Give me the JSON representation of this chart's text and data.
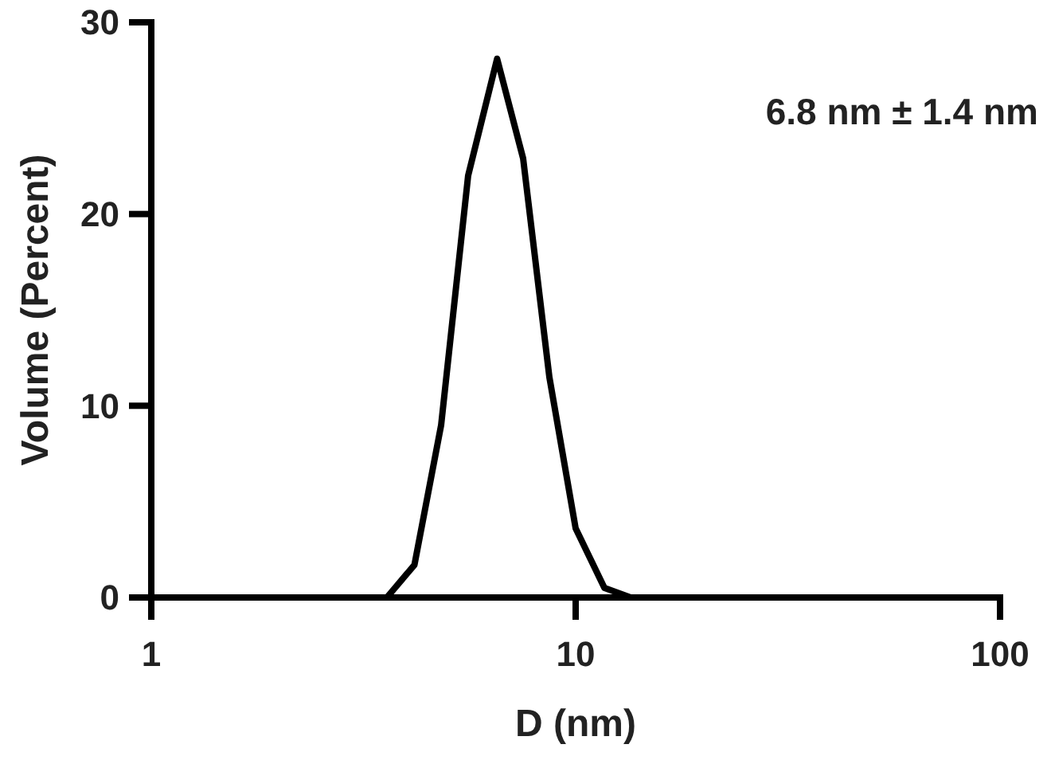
{
  "chart_data": {
    "type": "line",
    "xlabel": "D (nm)",
    "ylabel": "Volume (Percent)",
    "log": "x",
    "xlim": [
      1,
      100
    ],
    "xticks": [
      1,
      10,
      100
    ],
    "ylim": [
      0,
      30
    ],
    "yticks": [
      0,
      10,
      20,
      30
    ],
    "marker": "none",
    "line_style": "solid",
    "annotations": [
      "6.8 nm ± 1.4 nm"
    ],
    "series": [
      {
        "color": "#000000",
        "x": [
          3.59,
          4.17,
          4.82,
          5.58,
          6.53,
          7.52,
          8.67,
          10,
          11.69,
          13.48
        ],
        "values": [
          0,
          1.7,
          9,
          22,
          28.1,
          22.9,
          11.5,
          3.6,
          0.5,
          0
        ]
      }
    ]
  }
}
